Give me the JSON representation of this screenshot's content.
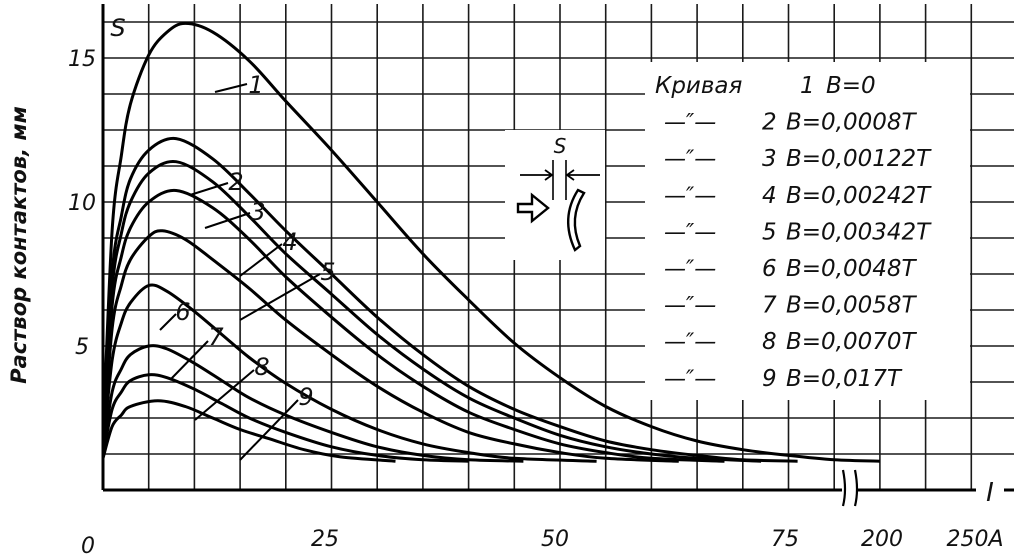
{
  "chart_data": {
    "type": "line",
    "title": "",
    "ylabel": "Раствор контактов, мм",
    "y_axis_symbol": "S",
    "x_axis_symbol": "I",
    "x_origin_label": "0",
    "x_ticks": [
      {
        "value": 25,
        "label": "25"
      },
      {
        "value": 50,
        "label": "50"
      },
      {
        "value": 75,
        "label": "75"
      },
      {
        "value": 200,
        "label": "200"
      },
      {
        "value": 250,
        "label": "250A"
      }
    ],
    "y_ticks": [
      5,
      10,
      15
    ],
    "x_axis_break": "broken between 85 and 200",
    "ylim": [
      0,
      16.5
    ],
    "legend": {
      "title_prefix": "Кривая",
      "entries": [
        {
          "curve": "1",
          "prefix": "Кривая",
          "label": "B=0"
        },
        {
          "curve": "2",
          "prefix": "—″—",
          "label": "B=0,0008T"
        },
        {
          "curve": "3",
          "prefix": "—″—",
          "label": "B=0,00122T"
        },
        {
          "curve": "4",
          "prefix": "—″—",
          "label": "B=0,00242T"
        },
        {
          "curve": "5",
          "prefix": "—″—",
          "label": "B=0,00342T"
        },
        {
          "curve": "6",
          "prefix": "—″—",
          "label": "B=0,0048T"
        },
        {
          "curve": "7",
          "prefix": "—″—",
          "label": "B=0,0058T"
        },
        {
          "curve": "8",
          "prefix": "—″—",
          "label": "B=0,0070T"
        },
        {
          "curve": "9",
          "prefix": "—″—",
          "label": "B=0,017T"
        }
      ]
    },
    "inset_label": "S",
    "series": [
      {
        "name": "1",
        "peak": [
          9,
          16.2
        ],
        "end": 85,
        "points": [
          [
            0,
            1.8
          ],
          [
            1,
            9.0
          ],
          [
            2,
            11.6
          ],
          [
            3,
            13.4
          ],
          [
            5,
            15.1
          ],
          [
            7,
            15.9
          ],
          [
            9,
            16.2
          ],
          [
            12,
            15.9
          ],
          [
            16,
            14.9
          ],
          [
            20,
            13.5
          ],
          [
            25,
            11.8
          ],
          [
            30,
            10.0
          ],
          [
            35,
            8.2
          ],
          [
            40,
            6.6
          ],
          [
            45,
            5.1
          ],
          [
            50,
            3.9
          ],
          [
            55,
            2.9
          ],
          [
            60,
            2.2
          ],
          [
            65,
            1.7
          ],
          [
            70,
            1.4
          ],
          [
            75,
            1.2
          ],
          [
            80,
            1.05
          ],
          [
            85,
            1.0
          ]
        ]
      },
      {
        "name": "2",
        "peak": [
          8,
          12.2
        ],
        "end": 76,
        "points": [
          [
            0,
            1.6
          ],
          [
            1,
            7.5
          ],
          [
            2,
            9.5
          ],
          [
            3,
            10.8
          ],
          [
            5,
            11.8
          ],
          [
            8,
            12.2
          ],
          [
            12,
            11.5
          ],
          [
            16,
            10.3
          ],
          [
            20,
            9.0
          ],
          [
            25,
            7.5
          ],
          [
            30,
            6.0
          ],
          [
            35,
            4.7
          ],
          [
            40,
            3.6
          ],
          [
            45,
            2.8
          ],
          [
            50,
            2.2
          ],
          [
            55,
            1.7
          ],
          [
            60,
            1.4
          ],
          [
            65,
            1.2
          ],
          [
            70,
            1.05
          ],
          [
            76,
            1.0
          ]
        ]
      },
      {
        "name": "3",
        "peak": [
          8,
          11.4
        ],
        "end": 72,
        "points": [
          [
            0,
            1.6
          ],
          [
            1,
            7.0
          ],
          [
            2,
            8.9
          ],
          [
            3,
            10.0
          ],
          [
            5,
            11.0
          ],
          [
            8,
            11.4
          ],
          [
            12,
            10.7
          ],
          [
            16,
            9.5
          ],
          [
            20,
            8.2
          ],
          [
            25,
            6.8
          ],
          [
            30,
            5.4
          ],
          [
            35,
            4.2
          ],
          [
            40,
            3.2
          ],
          [
            45,
            2.5
          ],
          [
            50,
            1.9
          ],
          [
            55,
            1.5
          ],
          [
            60,
            1.25
          ],
          [
            65,
            1.1
          ],
          [
            72,
            1.0
          ]
        ]
      },
      {
        "name": "4",
        "peak": [
          8,
          10.4
        ],
        "end": 68,
        "points": [
          [
            0,
            1.5
          ],
          [
            1,
            6.4
          ],
          [
            2,
            8.1
          ],
          [
            3,
            9.1
          ],
          [
            5,
            10.0
          ],
          [
            8,
            10.4
          ],
          [
            12,
            9.8
          ],
          [
            16,
            8.7
          ],
          [
            20,
            7.4
          ],
          [
            25,
            6.0
          ],
          [
            30,
            4.7
          ],
          [
            35,
            3.6
          ],
          [
            40,
            2.7
          ],
          [
            45,
            2.1
          ],
          [
            50,
            1.6
          ],
          [
            55,
            1.3
          ],
          [
            60,
            1.1
          ],
          [
            68,
            1.0
          ]
        ]
      },
      {
        "name": "5",
        "peak": [
          6.5,
          9.0
        ],
        "end": 63,
        "points": [
          [
            0,
            1.5
          ],
          [
            1,
            5.6
          ],
          [
            2,
            7.1
          ],
          [
            3,
            8.0
          ],
          [
            5,
            8.8
          ],
          [
            6.5,
            9.0
          ],
          [
            9,
            8.7
          ],
          [
            12,
            8.0
          ],
          [
            16,
            7.0
          ],
          [
            20,
            5.9
          ],
          [
            25,
            4.7
          ],
          [
            30,
            3.6
          ],
          [
            35,
            2.7
          ],
          [
            40,
            2.0
          ],
          [
            45,
            1.6
          ],
          [
            50,
            1.3
          ],
          [
            55,
            1.1
          ],
          [
            63,
            1.0
          ]
        ]
      },
      {
        "name": "6",
        "peak": [
          5,
          7.1
        ],
        "end": 54,
        "points": [
          [
            0,
            1.4
          ],
          [
            1,
            4.5
          ],
          [
            2,
            5.8
          ],
          [
            3,
            6.5
          ],
          [
            5,
            7.1
          ],
          [
            7,
            6.9
          ],
          [
            10,
            6.2
          ],
          [
            13,
            5.4
          ],
          [
            16,
            4.6
          ],
          [
            20,
            3.7
          ],
          [
            25,
            2.8
          ],
          [
            30,
            2.1
          ],
          [
            35,
            1.6
          ],
          [
            40,
            1.3
          ],
          [
            45,
            1.1
          ],
          [
            54,
            1.0
          ]
        ]
      },
      {
        "name": "7",
        "peak": [
          5,
          5.0
        ],
        "end": 46,
        "points": [
          [
            0,
            1.3
          ],
          [
            1,
            3.4
          ],
          [
            2,
            4.2
          ],
          [
            3,
            4.7
          ],
          [
            5,
            5.0
          ],
          [
            7,
            4.9
          ],
          [
            10,
            4.4
          ],
          [
            13,
            3.8
          ],
          [
            16,
            3.2
          ],
          [
            20,
            2.6
          ],
          [
            25,
            2.0
          ],
          [
            30,
            1.5
          ],
          [
            35,
            1.2
          ],
          [
            40,
            1.05
          ],
          [
            46,
            1.0
          ]
        ]
      },
      {
        "name": "8",
        "peak": [
          5,
          4.0
        ],
        "end": 40,
        "points": [
          [
            0,
            1.2
          ],
          [
            1,
            2.8
          ],
          [
            2,
            3.4
          ],
          [
            3,
            3.8
          ],
          [
            5,
            4.0
          ],
          [
            7,
            3.9
          ],
          [
            10,
            3.5
          ],
          [
            13,
            3.0
          ],
          [
            16,
            2.5
          ],
          [
            20,
            2.0
          ],
          [
            25,
            1.5
          ],
          [
            30,
            1.2
          ],
          [
            35,
            1.05
          ],
          [
            40,
            1.0
          ]
        ]
      },
      {
        "name": "9",
        "peak": [
          6,
          3.1
        ],
        "end": 32,
        "points": [
          [
            0,
            1.1
          ],
          [
            1,
            2.2
          ],
          [
            2,
            2.6
          ],
          [
            3,
            2.9
          ],
          [
            6,
            3.1
          ],
          [
            9,
            2.9
          ],
          [
            12,
            2.5
          ],
          [
            15,
            2.1
          ],
          [
            18,
            1.8
          ],
          [
            22,
            1.4
          ],
          [
            26,
            1.15
          ],
          [
            32,
            1.0
          ]
        ]
      }
    ]
  }
}
